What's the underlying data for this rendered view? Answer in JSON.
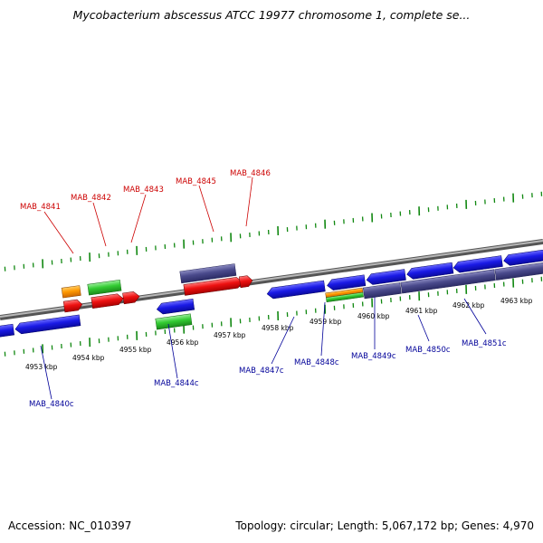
{
  "title": "Mycobacterium abscessus ATCC 19977 chromosome 1, complete se...",
  "footer": {
    "accession": "Accession: NC_010397",
    "summary": "Topology: circular; Length: 5,067,172 bp; Genes: 4,970"
  },
  "colors": {
    "backbone": "#888888",
    "tick": "#118811",
    "forward_label": "#cc0000",
    "reverse_label": "#000099",
    "blue": "#1a1ae6",
    "navy": "#4a4a8c",
    "red": "#ee1111",
    "green": "#33cc33",
    "orange": "#ff9900"
  },
  "scale_labels": [
    "4953 kbp",
    "4954 kbp",
    "4955 kbp",
    "4956 kbp",
    "4957 kbp",
    "4958 kbp",
    "4959 kbp",
    "4960 kbp",
    "4961 kbp",
    "4962 kbp",
    "4963 kbp"
  ],
  "forward_genes": [
    "MAB_4841",
    "MAB_4842",
    "MAB_4843",
    "MAB_4845",
    "MAB_4846"
  ],
  "reverse_genes": [
    "MAB_4840c",
    "MAB_4844c",
    "MAB_4847c",
    "MAB_4848c",
    "MAB_4849c",
    "MAB_4850c",
    "MAB_4851c"
  ]
}
